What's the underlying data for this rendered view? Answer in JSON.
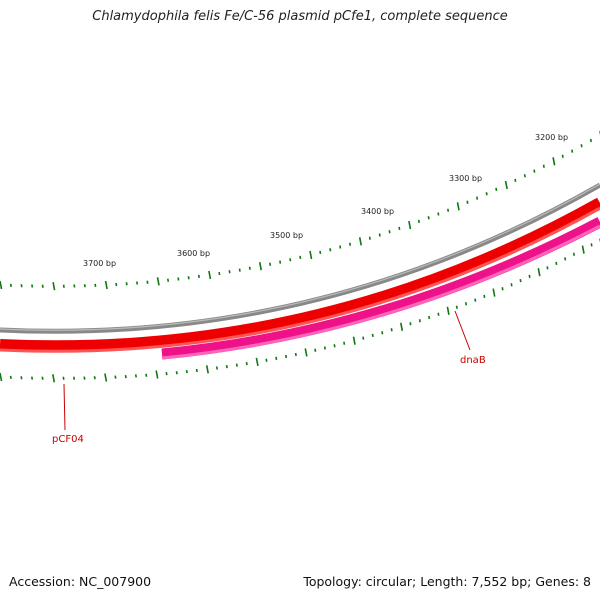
{
  "title": "Chlamydophila felis Fe/C-56 plasmid pCfe1, complete sequence",
  "footer": {
    "accession": "Accession: NC_007900",
    "summary": "Topology: circular; Length: 7,552 bp; Genes: 8"
  },
  "scale": {
    "unit": "bp",
    "labels": [
      "3200 bp",
      "3300 bp",
      "3400 bp",
      "3500 bp",
      "3600 bp",
      "3700 bp"
    ]
  },
  "genes": [
    {
      "name": "pCF04",
      "strand": "forward",
      "color": "#ee0000"
    },
    {
      "name": "dnaB",
      "strand": "reverse",
      "color": "#ee1188"
    }
  ],
  "colors": {
    "backbone": "#888888",
    "forward_gene": "#ee0000",
    "reverse_gene": "#ee1188",
    "ticks": "#117711",
    "label_line": "#cc0000"
  }
}
